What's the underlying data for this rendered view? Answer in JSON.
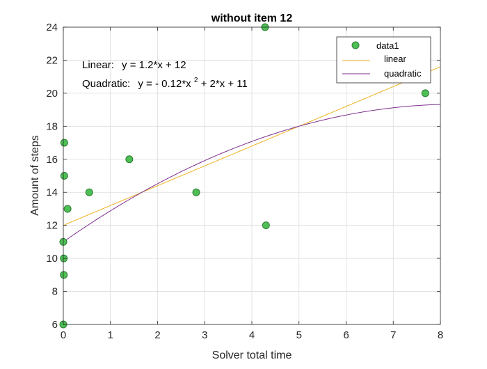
{
  "chart_data": {
    "type": "scatter",
    "title": "without item 12",
    "xlabel": "Solver total time",
    "ylabel": "Amount of steps",
    "xlim": [
      0,
      8
    ],
    "ylim": [
      6,
      24
    ],
    "xticks": [
      0,
      1,
      2,
      3,
      4,
      5,
      6,
      7,
      8
    ],
    "yticks": [
      6,
      8,
      10,
      12,
      14,
      16,
      18,
      20,
      22,
      24
    ],
    "xtick_labels": [
      "0",
      "1",
      "2",
      "3",
      "4",
      "5",
      "6",
      "7",
      "8"
    ],
    "ytick_labels": [
      "6",
      "8",
      "10",
      "12",
      "14",
      "16",
      "18",
      "20",
      "22",
      "24"
    ],
    "grid": true,
    "legend_position": "top-right",
    "series": [
      {
        "name": "data1",
        "kind": "markers",
        "color": "#4dbf55",
        "points": [
          {
            "x": 0.0,
            "y": 6
          },
          {
            "x": 0.01,
            "y": 9
          },
          {
            "x": 0.01,
            "y": 10
          },
          {
            "x": 0.0,
            "y": 11
          },
          {
            "x": 0.02,
            "y": 15
          },
          {
            "x": 0.02,
            "y": 17
          },
          {
            "x": 0.09,
            "y": 13
          },
          {
            "x": 0.55,
            "y": 14
          },
          {
            "x": 1.4,
            "y": 16
          },
          {
            "x": 2.82,
            "y": 14
          },
          {
            "x": 4.28,
            "y": 24
          },
          {
            "x": 4.3,
            "y": 12
          },
          {
            "x": 7.68,
            "y": 20
          }
        ]
      },
      {
        "name": "linear",
        "kind": "line",
        "color": "#edb120",
        "coefficients": [
          1.2,
          12
        ]
      },
      {
        "name": "quadratic",
        "kind": "line",
        "color": "#7e2f8e",
        "coefficients": [
          -0.12,
          2,
          11
        ]
      }
    ],
    "annotations": {
      "linear_prefix": "Linear:",
      "linear_eq": "y = 1.2*x + 12",
      "quadratic_prefix": "Quadratic:",
      "quadratic_eq_a": "y = - 0.12*x",
      "quadratic_exp": "2",
      "quadratic_eq_b": " + 2*x + 11"
    }
  }
}
